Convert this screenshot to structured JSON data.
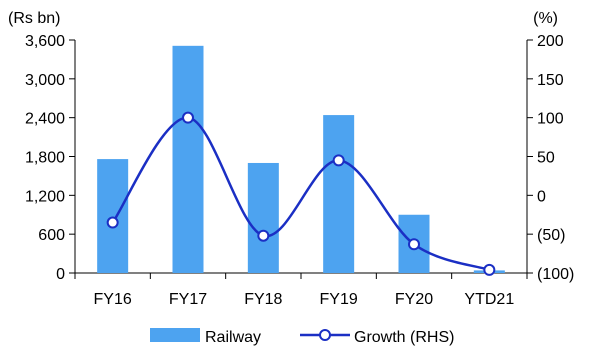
{
  "chart_data": {
    "type": "bar",
    "categories": [
      "FY16",
      "FY17",
      "FY18",
      "FY19",
      "FY20",
      "YTD21"
    ],
    "series": [
      {
        "name": "Railway",
        "type": "bar",
        "axis": "left",
        "color": "#4da3f0",
        "values": [
          1760,
          3510,
          1700,
          2440,
          900,
          40
        ]
      },
      {
        "name": "Growth (RHS)",
        "type": "line",
        "axis": "right",
        "smooth": true,
        "marker": "open-circle",
        "color": "#1b2fc4",
        "values": [
          -35,
          100,
          -52,
          45,
          -63,
          -96
        ]
      }
    ],
    "y_left": {
      "unit_label": "(Rs bn)",
      "ylim": [
        0,
        3600
      ],
      "ticks": [
        0,
        600,
        1200,
        1800,
        2400,
        3000,
        3600
      ],
      "tick_labels": [
        "0",
        "600",
        "1,200",
        "1,800",
        "2,400",
        "3,000",
        "3,600"
      ]
    },
    "y_right": {
      "unit_label": "(%)",
      "ylim": [
        -100,
        200
      ],
      "ticks": [
        -100,
        -50,
        0,
        50,
        100,
        150,
        200
      ],
      "tick_labels": [
        "(100)",
        "(50)",
        "0",
        "50",
        "100",
        "150",
        "200"
      ]
    },
    "legend": {
      "placement": "bottom-center",
      "items": [
        {
          "label": "Railway",
          "kind": "bar",
          "color": "#4da3f0"
        },
        {
          "label": "Growth (RHS)",
          "kind": "line",
          "color": "#1b2fc4"
        }
      ]
    },
    "grid": false
  }
}
